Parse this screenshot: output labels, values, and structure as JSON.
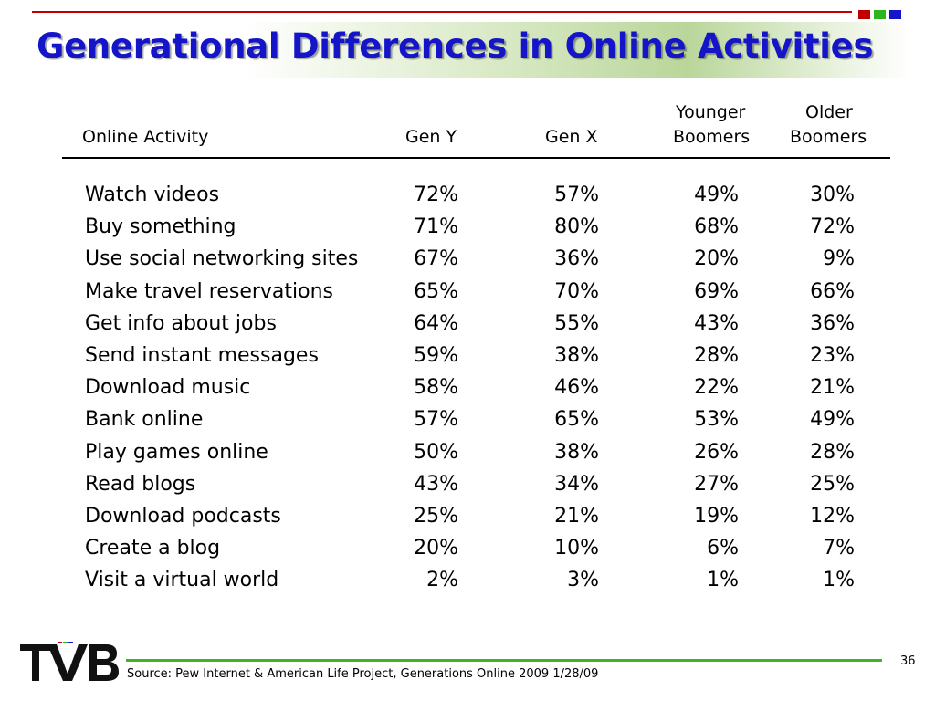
{
  "slide": {
    "title": "Generational Differences in Online Activities",
    "accent_colors": [
      "#c00000",
      "#2db51d",
      "#1414c8"
    ],
    "page_number": "36",
    "source": "Source: Pew Internet & American Life Project, Generations Online 2009 1/28/09",
    "logo_text": "TVB"
  },
  "table": {
    "headers": {
      "activity": "Online Activity",
      "gen_y": "Gen Y",
      "gen_x": "Gen X",
      "younger_boomers_1": "Younger",
      "younger_boomers_2": "Boomers",
      "older_boomers_1": "Older",
      "older_boomers_2": "Boomers"
    },
    "rows": [
      {
        "activity": "Watch videos",
        "gen_y": "72%",
        "gen_x": "57%",
        "younger": "49%",
        "older": "30%"
      },
      {
        "activity": "Buy something",
        "gen_y": "71%",
        "gen_x": "80%",
        "younger": "68%",
        "older": "72%"
      },
      {
        "activity": "Use social networking sites",
        "gen_y": "67%",
        "gen_x": "36%",
        "younger": "20%",
        "older": "9%"
      },
      {
        "activity": "Make travel reservations",
        "gen_y": "65%",
        "gen_x": "70%",
        "younger": "69%",
        "older": "66%"
      },
      {
        "activity": "Get info about jobs",
        "gen_y": "64%",
        "gen_x": "55%",
        "younger": "43%",
        "older": "36%"
      },
      {
        "activity": "Send instant messages",
        "gen_y": "59%",
        "gen_x": "38%",
        "younger": "28%",
        "older": "23%"
      },
      {
        "activity": "Download music",
        "gen_y": "58%",
        "gen_x": "46%",
        "younger": "22%",
        "older": "21%"
      },
      {
        "activity": "Bank online",
        "gen_y": "57%",
        "gen_x": "65%",
        "younger": "53%",
        "older": "49%"
      },
      {
        "activity": "Play games online",
        "gen_y": "50%",
        "gen_x": "38%",
        "younger": "26%",
        "older": "28%"
      },
      {
        "activity": "Read blogs",
        "gen_y": "43%",
        "gen_x": "34%",
        "younger": "27%",
        "older": "25%"
      },
      {
        "activity": "Download podcasts",
        "gen_y": "25%",
        "gen_x": "21%",
        "younger": "19%",
        "older": "12%"
      },
      {
        "activity": "Create a blog",
        "gen_y": "20%",
        "gen_x": "10%",
        "younger": "6%",
        "older": "7%"
      },
      {
        "activity": "Visit a virtual world",
        "gen_y": "2%",
        "gen_x": "3%",
        "younger": "1%",
        "older": "1%"
      }
    ]
  }
}
